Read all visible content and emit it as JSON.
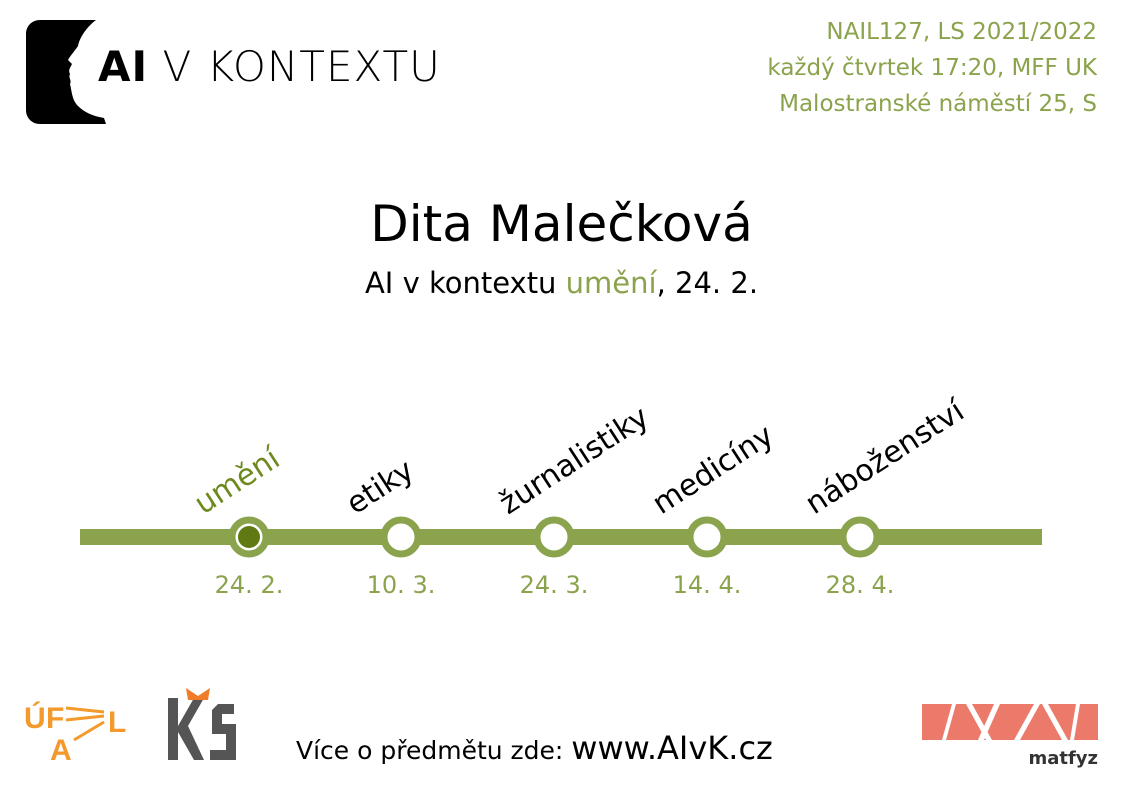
{
  "header": {
    "logo_text_ai": "AI",
    "logo_text_rest": " V KONTEXTU",
    "course_lines": [
      "NAIL127, LS 2021/2022",
      "každý čtvrtek 17:20, MFF UK",
      "Malostranské náměstí 25, S"
    ]
  },
  "main": {
    "speaker": "Dita Malečková",
    "subtitle_prefix": "AI v kontextu ",
    "subtitle_topic": "umění",
    "subtitle_suffix": ", 24. 2."
  },
  "timeline": {
    "items": [
      {
        "topic": "umění",
        "date": "24. 2.",
        "active": true
      },
      {
        "topic": "etiky",
        "date": "10. 3.",
        "active": false
      },
      {
        "topic": "žurnalistiky",
        "date": "24. 3.",
        "active": false
      },
      {
        "topic": "medicíny",
        "date": "14. 4.",
        "active": false
      },
      {
        "topic": "náboženství",
        "date": "28. 4.",
        "active": false
      }
    ]
  },
  "footer": {
    "more_prefix": "Více o předmětu zde: ",
    "more_url": "www.AIvK.cz",
    "ufal_logo_text": "ÚFAL",
    "ks_logo_text": "KS",
    "matfyz_logo_text": "matfyz"
  },
  "colors": {
    "accent": "#8aa34c",
    "active_dot": "#5f7a12",
    "ufal_orange": "#f4992b",
    "ks_gray": "#555555",
    "ks_orange": "#f07c2a",
    "matfyz_salmon": "#ec7a6b"
  }
}
